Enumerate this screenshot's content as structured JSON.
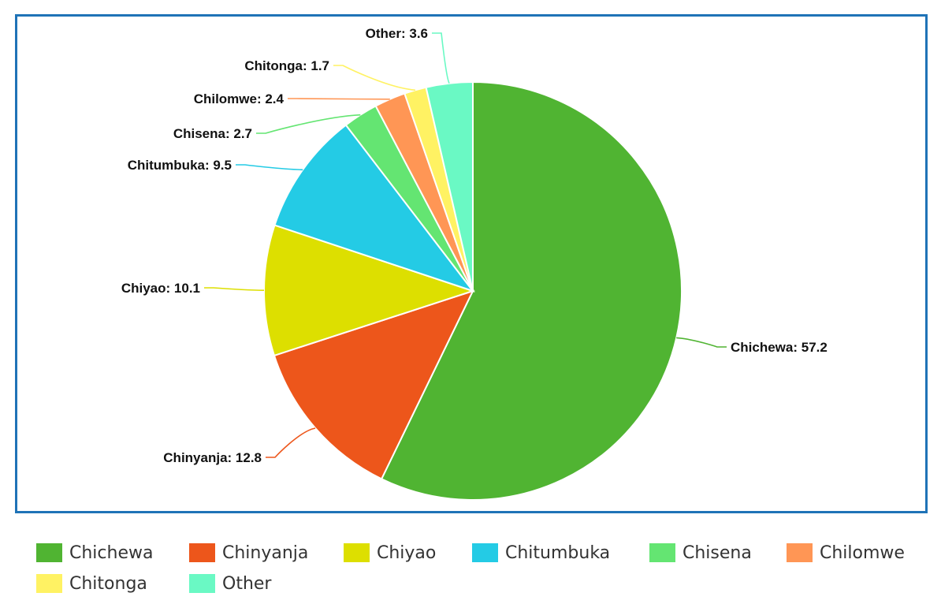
{
  "chart_data": {
    "type": "pie",
    "title": "",
    "series": [
      {
        "label": "Chichewa",
        "value": 57.2,
        "color": "#50b432",
        "data_label": "Chichewa: 57.2"
      },
      {
        "label": "Chinyanja",
        "value": 12.8,
        "color": "#ed561b",
        "data_label": "Chinyanja: 12.8"
      },
      {
        "label": "Chiyao",
        "value": 10.1,
        "color": "#dddf00",
        "data_label": "Chiyao: 10.1"
      },
      {
        "label": "Chitumbuka",
        "value": 9.5,
        "color": "#24cbe5",
        "data_label": "Chitumbuka: 9.5"
      },
      {
        "label": "Chisena",
        "value": 2.7,
        "color": "#64e572",
        "data_label": "Chisena: 2.7"
      },
      {
        "label": "Chilomwe",
        "value": 2.4,
        "color": "#ff9655",
        "data_label": "Chilomwe: 2.4"
      },
      {
        "label": "Chitonga",
        "value": 1.7,
        "color": "#fff263",
        "data_label": "Chitonga: 1.7"
      },
      {
        "label": "Other",
        "value": 3.6,
        "color": "#6af9c4",
        "data_label": "Other: 3.6"
      }
    ],
    "legend_position": "bottom"
  }
}
